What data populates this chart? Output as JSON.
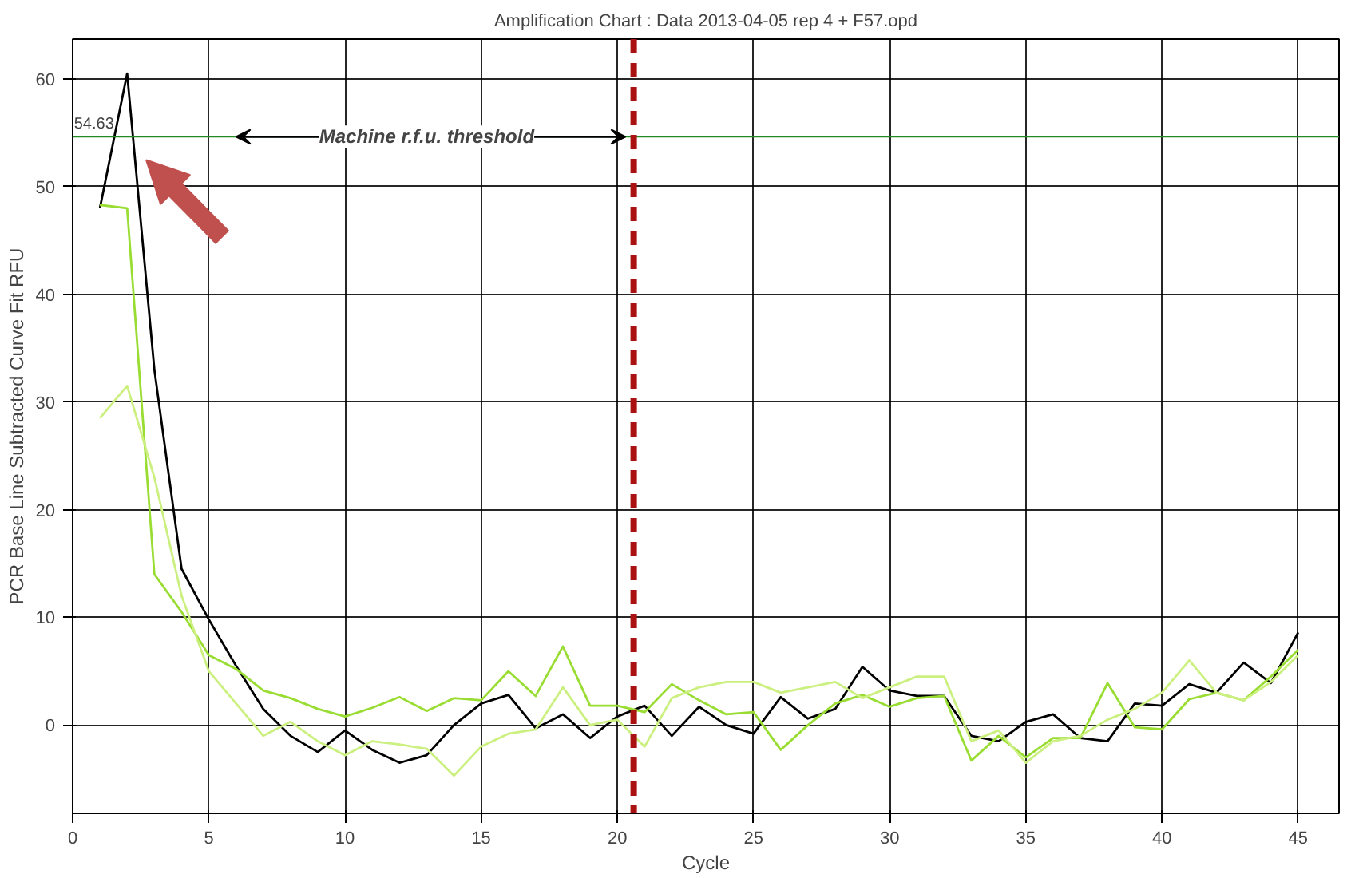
{
  "chart_data": {
    "type": "line",
    "title": "Amplification Chart : Data 2013-04-05 rep 4 + F57.opd",
    "xlabel": "Cycle",
    "ylabel": "PCR Base Line Subtracted Curve Fit RFU",
    "x": [
      1,
      2,
      3,
      4,
      5,
      6,
      7,
      8,
      9,
      10,
      11,
      12,
      13,
      14,
      15,
      16,
      17,
      18,
      19,
      20,
      21,
      22,
      23,
      24,
      25,
      26,
      27,
      28,
      29,
      30,
      31,
      32,
      33,
      34,
      35,
      36,
      37,
      38,
      39,
      40,
      41,
      42,
      43,
      44,
      45
    ],
    "series": [
      {
        "color": "#000000",
        "values": [
          48,
          60.5,
          33,
          14.5,
          9.8,
          5.5,
          1.5,
          -1,
          -2.5,
          -0.5,
          -2.3,
          -3.5,
          -2.8,
          0,
          2,
          2.8,
          -0.3,
          1,
          -1.2,
          0.8,
          1.8,
          -1,
          1.7,
          0,
          -0.8,
          2.6,
          0.6,
          1.5,
          5.4,
          3.2,
          2.7,
          2.7,
          -1,
          -1.5,
          0.3,
          1,
          -1.2,
          -1.5,
          2,
          1.8,
          3.8,
          3,
          5.8,
          3.9,
          8.6
        ]
      },
      {
        "color": "#99dd33",
        "values": [
          48.3,
          48,
          14,
          10.5,
          6.5,
          5.2,
          3.2,
          2.5,
          1.5,
          0.8,
          1.6,
          2.6,
          1.3,
          2.5,
          2.3,
          5,
          2.7,
          7.3,
          1.8,
          1.8,
          1.2,
          3.8,
          2.3,
          1,
          1.2,
          -2.3,
          0,
          2,
          2.8,
          1.7,
          2.5,
          2.7,
          -3.3,
          -1,
          -3,
          -1.2,
          -1.2,
          3.9,
          -0.2,
          -0.4,
          2.4,
          3,
          2.3,
          4.5,
          7
        ]
      },
      {
        "color": "#ccf080",
        "values": [
          28.5,
          31.5,
          23,
          12,
          5,
          2,
          -1,
          0.3,
          -1.5,
          -2.8,
          -1.5,
          -1.8,
          -2.2,
          -4.7,
          -2,
          -0.8,
          -0.4,
          3.5,
          0,
          0.5,
          -2,
          2.5,
          3.5,
          4,
          4,
          3,
          3.5,
          4,
          2.5,
          3.5,
          4.5,
          4.5,
          -1.5,
          -0.5,
          -3.5,
          -1.5,
          -1,
          0.5,
          1.5,
          3,
          6,
          3,
          2.3,
          4,
          6.5
        ]
      }
    ],
    "xlim": [
      0,
      46.5
    ],
    "ylim": [
      -8.2,
      63.7
    ],
    "xticks": [
      0,
      5,
      10,
      15,
      20,
      25,
      30,
      35,
      40,
      45
    ],
    "yticks": [
      0,
      10,
      20,
      30,
      40,
      50,
      60
    ],
    "grid": true,
    "ref_lines": [
      {
        "axis": "y",
        "value": 54.63,
        "label": "54.63",
        "color": "#228b22",
        "line_style": "solid"
      },
      {
        "axis": "x",
        "value": 20.6,
        "label": null,
        "color": "#aa1111",
        "line_style": "dashed"
      }
    ],
    "annotations": [
      {
        "text": "Machine r.f.u. threshold",
        "x": 13,
        "y": 54.63
      }
    ]
  }
}
